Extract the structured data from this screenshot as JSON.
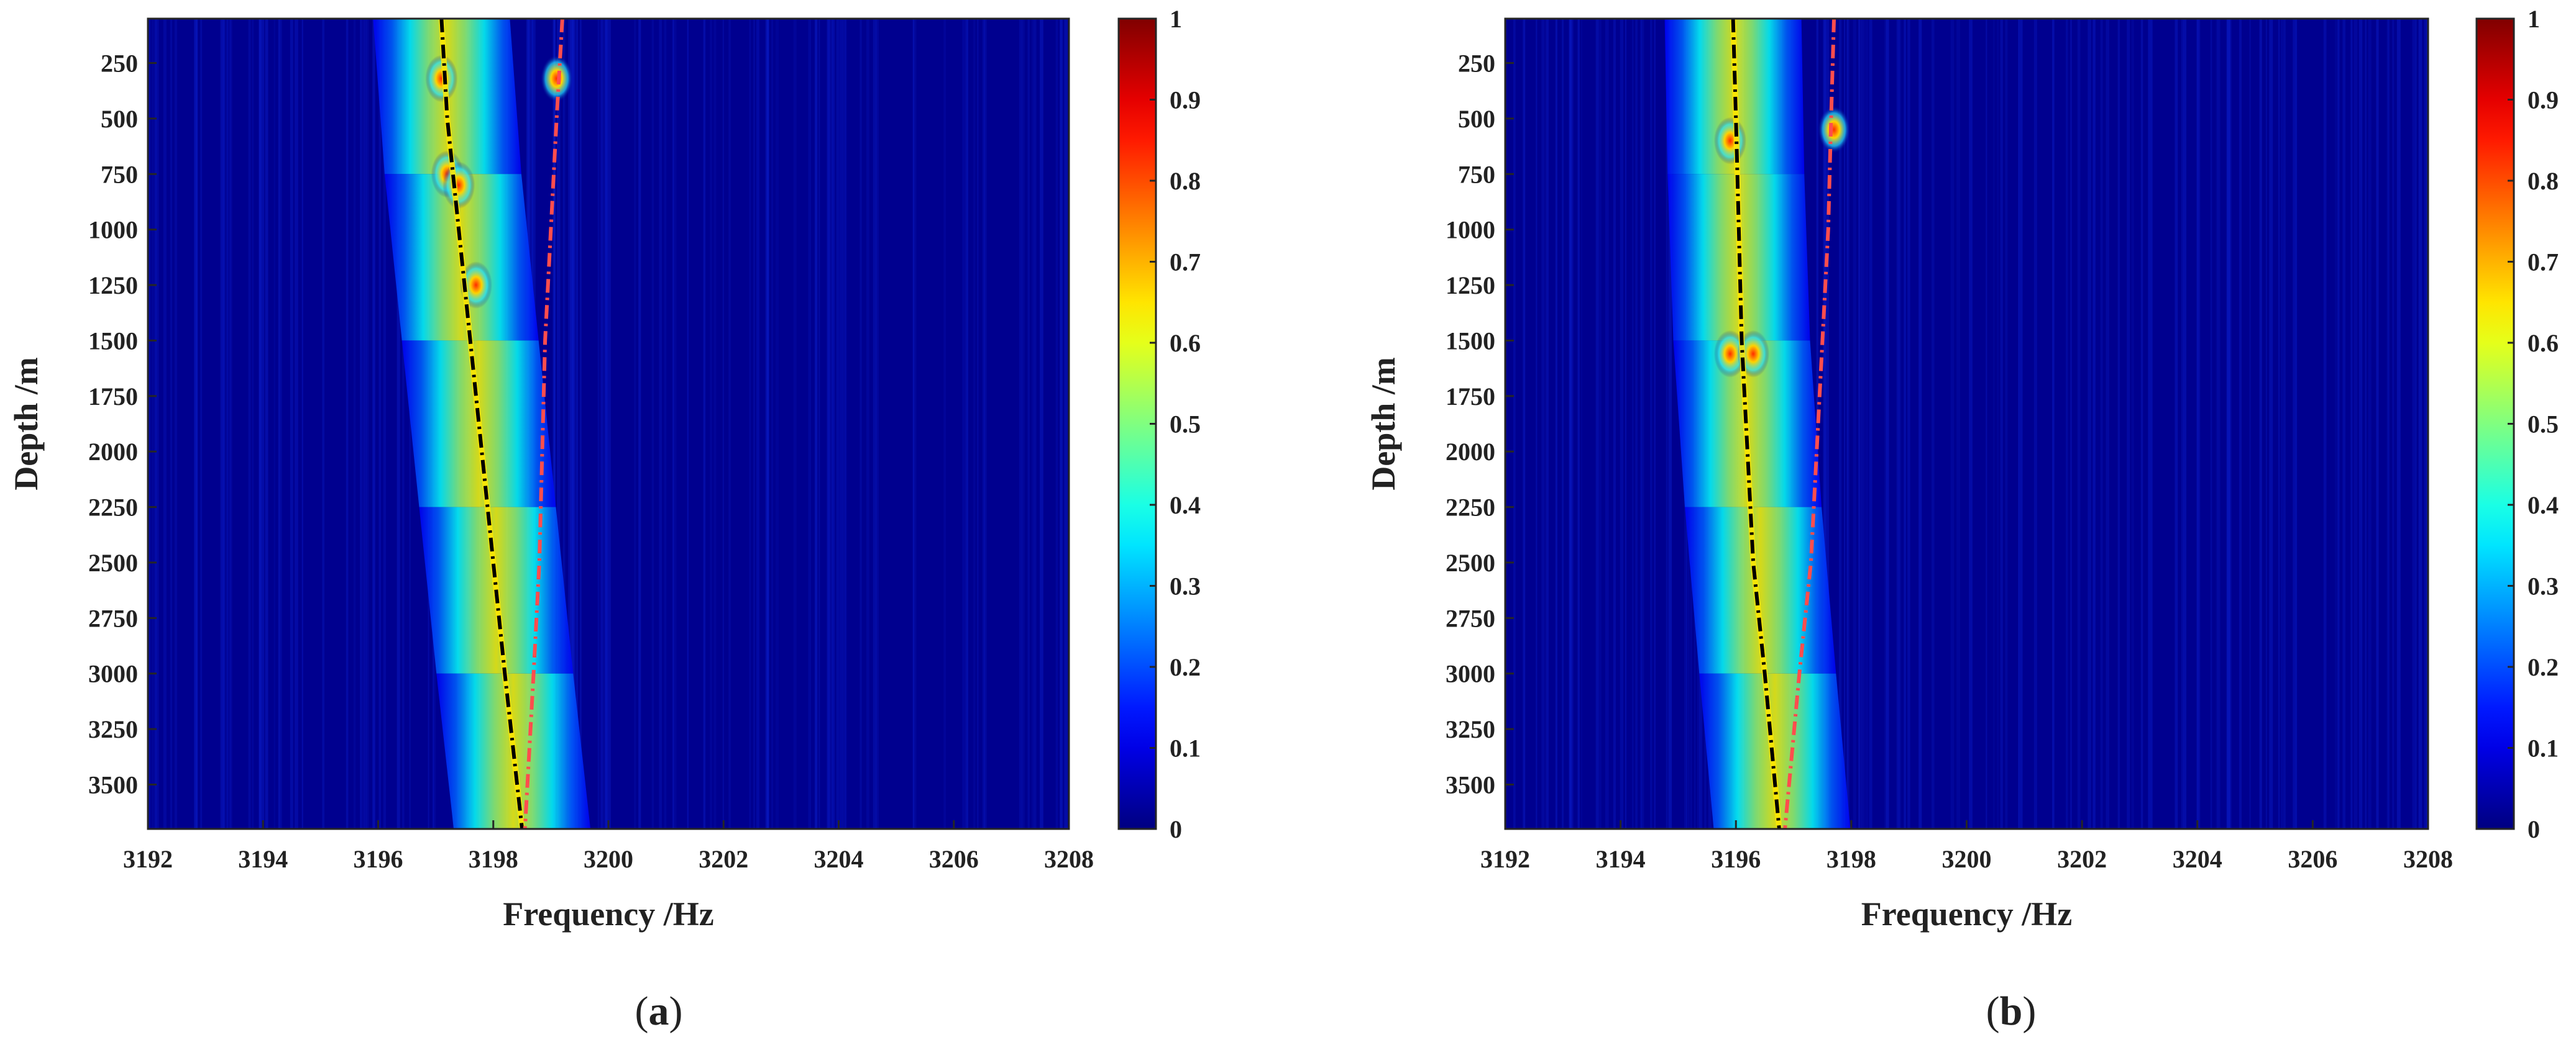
{
  "chart_data": [
    {
      "type": "heatmap",
      "panel_label": "a",
      "xlabel": "Frequency /Hz",
      "ylabel": "Depth /m",
      "xlim": [
        3192,
        3208
      ],
      "ylim": [
        3700,
        50
      ],
      "xticks": [
        3192,
        3194,
        3196,
        3198,
        3200,
        3202,
        3204,
        3206,
        3208
      ],
      "yticks": [
        250,
        500,
        750,
        1000,
        1250,
        1500,
        1750,
        2000,
        2250,
        2500,
        2750,
        3000,
        3250,
        3500
      ],
      "colorbar": {
        "ticks": [
          "0",
          "0.1",
          "0.2",
          "0.3",
          "0.4",
          "0.5",
          "0.6",
          "0.7",
          "0.8",
          "0.9",
          "1"
        ],
        "colormap": "jet",
        "range": [
          0,
          1
        ]
      },
      "colors": {
        "black_line": "#000000",
        "red_line": "#ff4d4d",
        "yellow_line": "#ffe600"
      },
      "ridge": {
        "points": [
          [
            3197.1,
            50
          ],
          [
            3197.3,
            750
          ],
          [
            3197.6,
            1500
          ],
          [
            3197.9,
            2250
          ],
          [
            3198.2,
            3000
          ],
          [
            3198.5,
            3700
          ]
        ]
      },
      "series": [
        {
          "style": "black dash-dot",
          "points": [
            [
              3197.1,
              50
            ],
            [
              3197.2,
              500
            ],
            [
              3197.4,
              1000
            ],
            [
              3197.6,
              1500
            ],
            [
              3197.8,
              2000
            ],
            [
              3198.0,
              2500
            ],
            [
              3198.2,
              3000
            ],
            [
              3198.5,
              3700
            ]
          ]
        },
        {
          "style": "red dash-dot",
          "points": [
            [
              3199.2,
              50
            ],
            [
              3199.1,
              500
            ],
            [
              3199.0,
              1000
            ],
            [
              3198.9,
              1500
            ],
            [
              3198.85,
              2000
            ],
            [
              3198.8,
              2500
            ],
            [
              3198.7,
              3000
            ],
            [
              3198.55,
              3700
            ]
          ]
        }
      ],
      "bright_spots": [
        [
          3197.1,
          320
        ],
        [
          3199.1,
          320
        ],
        [
          3197.2,
          750
        ],
        [
          3197.4,
          800
        ],
        [
          3197.7,
          1250
        ]
      ]
    },
    {
      "type": "heatmap",
      "panel_label": "b",
      "xlabel": "Frequency /Hz",
      "ylabel": "Depth /m",
      "xlim": [
        3192,
        3208
      ],
      "ylim": [
        3700,
        50
      ],
      "xticks": [
        3192,
        3194,
        3196,
        3198,
        3200,
        3202,
        3204,
        3206,
        3208
      ],
      "yticks": [
        250,
        500,
        750,
        1000,
        1250,
        1500,
        1750,
        2000,
        2250,
        2500,
        2750,
        3000,
        3250,
        3500
      ],
      "colorbar": {
        "ticks": [
          "0",
          "0.1",
          "0.2",
          "0.3",
          "0.4",
          "0.5",
          "0.6",
          "0.7",
          "0.8",
          "0.9",
          "1"
        ],
        "colormap": "jet",
        "range": [
          0,
          1
        ]
      },
      "colors": {
        "black_line": "#000000",
        "red_line": "#ff4d4d",
        "yellow_line": "#ffe600"
      },
      "ridge": {
        "points": [
          [
            3195.95,
            50
          ],
          [
            3196.0,
            750
          ],
          [
            3196.1,
            1500
          ],
          [
            3196.3,
            2250
          ],
          [
            3196.55,
            3000
          ],
          [
            3196.8,
            3700
          ]
        ]
      },
      "series": [
        {
          "style": "black dash-dot",
          "points": [
            [
              3195.95,
              50
            ],
            [
              3196.0,
              500
            ],
            [
              3196.05,
              1000
            ],
            [
              3196.1,
              1500
            ],
            [
              3196.2,
              2000
            ],
            [
              3196.3,
              2500
            ],
            [
              3196.5,
              3000
            ],
            [
              3196.75,
              3700
            ]
          ]
        },
        {
          "style": "red dash-dot",
          "points": [
            [
              3197.7,
              50
            ],
            [
              3197.65,
              500
            ],
            [
              3197.6,
              1000
            ],
            [
              3197.5,
              1500
            ],
            [
              3197.4,
              2000
            ],
            [
              3197.3,
              2500
            ],
            [
              3197.1,
              3000
            ],
            [
              3196.85,
              3700
            ]
          ]
        }
      ],
      "bright_spots": [
        [
          3195.9,
          1560
        ],
        [
          3196.3,
          1560
        ],
        [
          3195.9,
          600
        ],
        [
          3197.7,
          550
        ]
      ]
    }
  ]
}
